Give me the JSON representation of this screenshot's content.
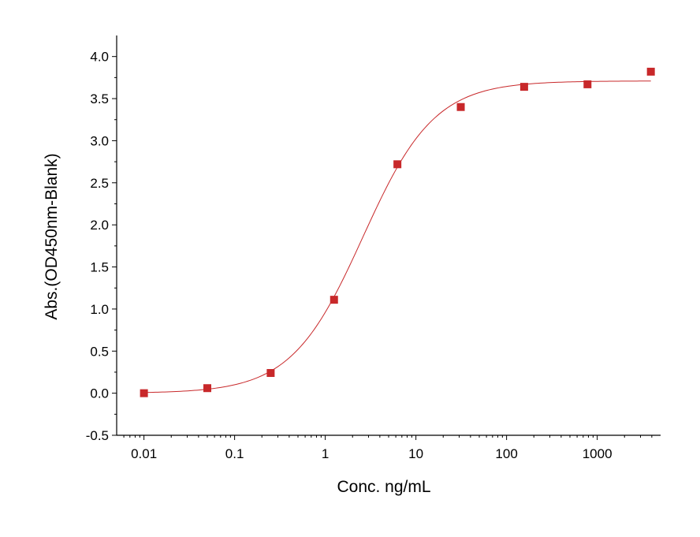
{
  "chart_data": {
    "type": "scatter",
    "xlabel": "Conc. ng/mL",
    "ylabel": "Abs.(OD450nm-Blank)",
    "x_scale": "log",
    "xlim": [
      0.005,
      5000
    ],
    "ylim": [
      -0.5,
      4.25
    ],
    "x_ticks": [
      0.01,
      0.1,
      1,
      10,
      100,
      1000
    ],
    "x_tick_labels": [
      "0.01",
      "0.1",
      "1",
      "10",
      "100",
      "1000"
    ],
    "y_ticks": [
      -0.5,
      0.0,
      0.5,
      1.0,
      1.5,
      2.0,
      2.5,
      3.0,
      3.5,
      4.0
    ],
    "y_tick_labels": [
      "-0.5",
      "0.0",
      "0.5",
      "1.0",
      "1.5",
      "2.0",
      "2.5",
      "3.0",
      "3.5",
      "4.0"
    ],
    "grid": false,
    "series": [
      {
        "marker": "square",
        "color": "#c8282a",
        "x": [
          0.01,
          0.05,
          0.25,
          1.25,
          6.25,
          31.25,
          156.25,
          781.25,
          3906.25
        ],
        "y": [
          0.0,
          0.06,
          0.24,
          1.11,
          2.72,
          3.4,
          3.64,
          3.67,
          3.82
        ]
      }
    ],
    "fit_curve": {
      "type": "4PL",
      "color": "#c8282a",
      "bottom": 0.0,
      "top": 3.71,
      "ec50": 2.6,
      "hill": 1.1
    }
  }
}
